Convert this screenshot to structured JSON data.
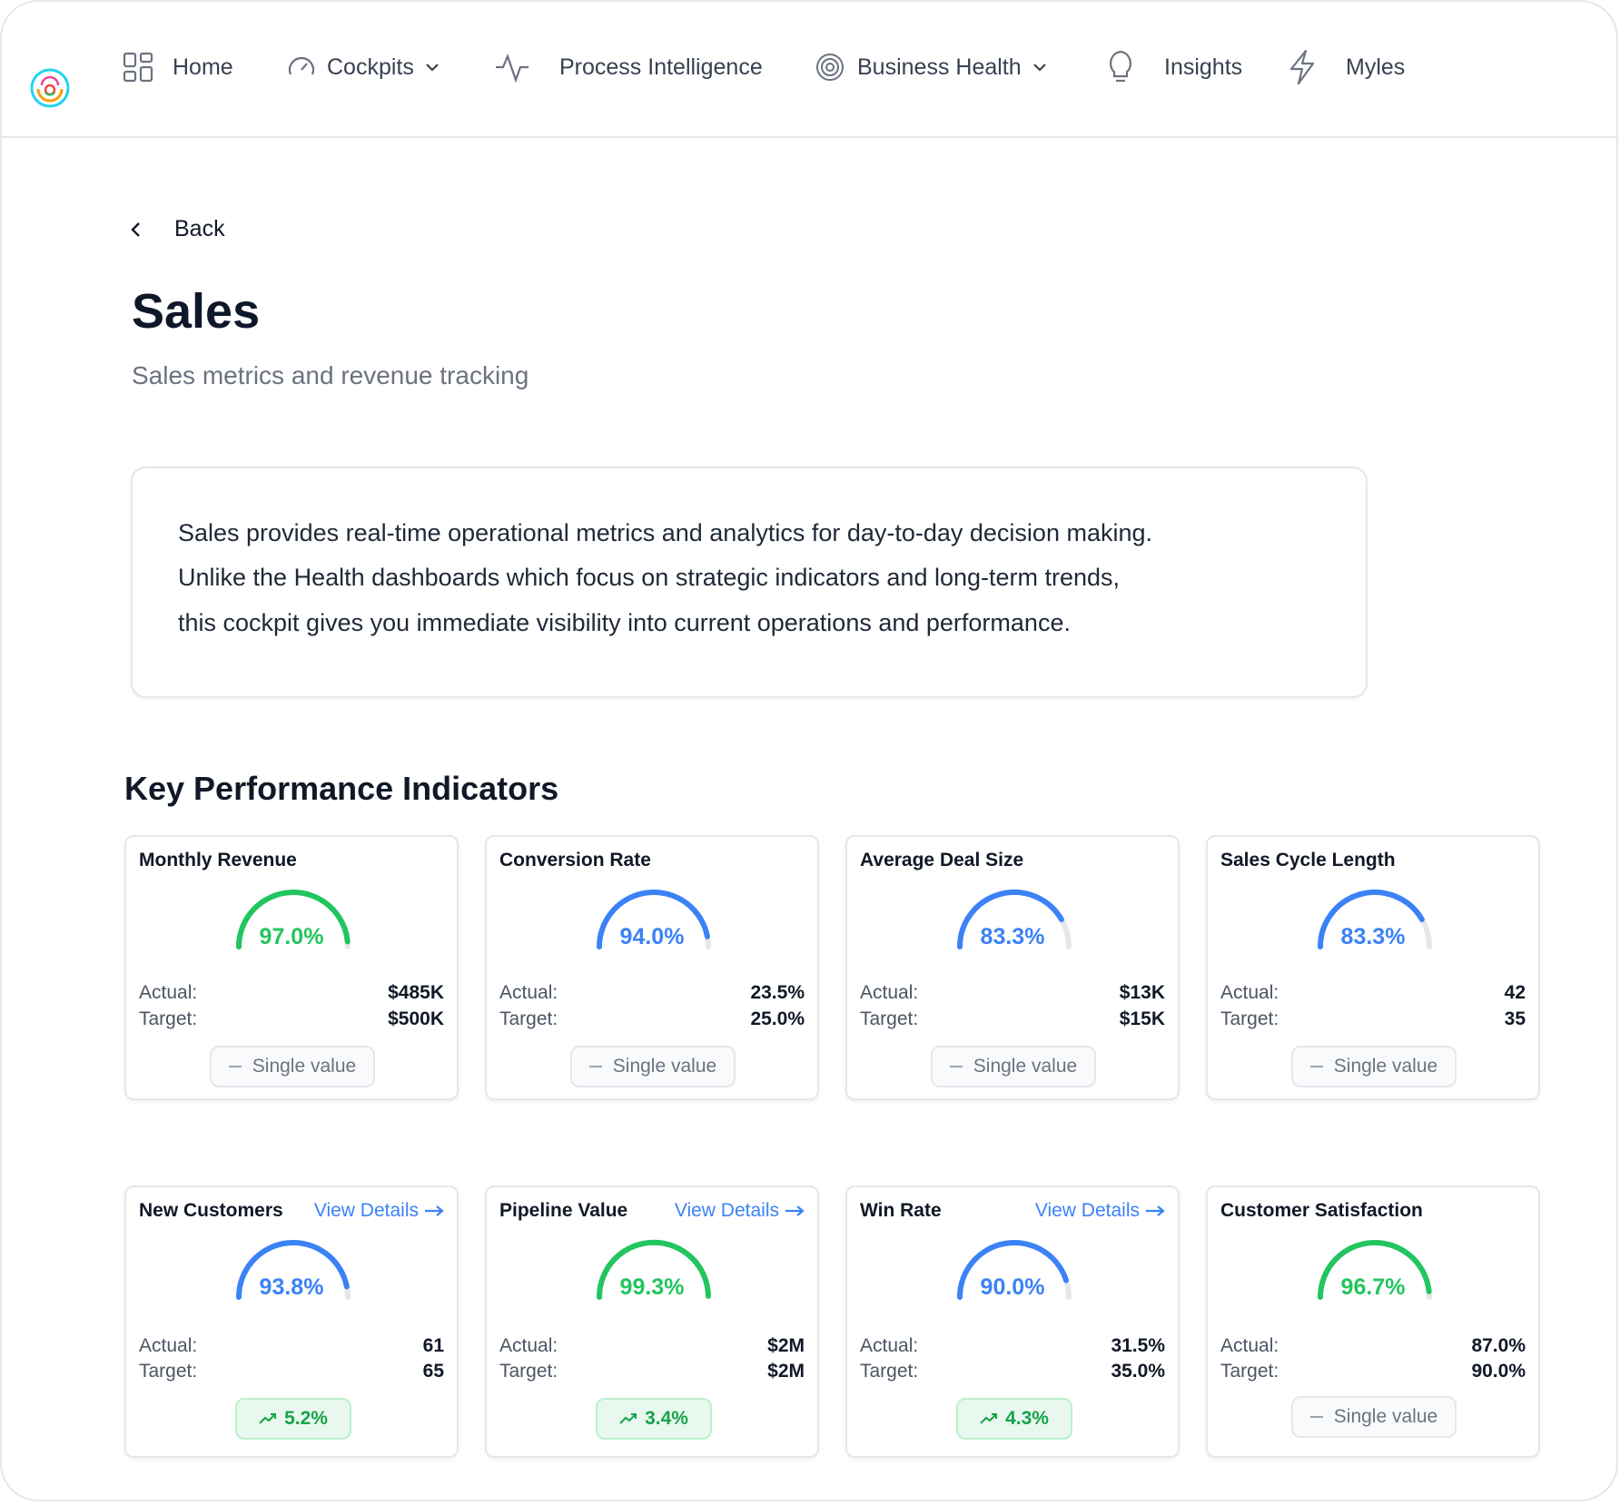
{
  "nav": {
    "items": [
      {
        "label": "Home",
        "icon": "grid-icon"
      },
      {
        "label": "Cockpits",
        "icon": "gauge-icon",
        "dropdown": true
      },
      {
        "label": "Process Intelligence",
        "icon": "activity-icon"
      },
      {
        "label": "Business Health",
        "icon": "target-icon",
        "dropdown": true
      },
      {
        "label": "Insights",
        "icon": "lightbulb-icon"
      },
      {
        "label": "Myles",
        "icon": "lightning-icon"
      }
    ]
  },
  "back_label": "Back",
  "page": {
    "title": "Sales",
    "subtitle": "Sales metrics and revenue tracking",
    "description": [
      "Sales provides real-time operational metrics and analytics for day-to-day decision making.",
      "Unlike the Health dashboards which focus on strategic indicators and long-term trends,",
      "this cockpit gives you immediate visibility into current operations and performance."
    ]
  },
  "kpi_heading": "Key Performance Indicators",
  "labels": {
    "actual": "Actual:",
    "target": "Target:",
    "single_value": "Single value",
    "view_details": "View Details"
  },
  "colors": {
    "green": "#22c55e",
    "blue": "#3b82f6",
    "track": "#e5e7eb",
    "trend_text": "#16a34a"
  },
  "kpis": [
    {
      "title": "Monthly Revenue",
      "percent": "97.0%",
      "progress": 0.97,
      "color": "green",
      "actual": "$485K",
      "target": "$500K",
      "badge": "single"
    },
    {
      "title": "Conversion Rate",
      "percent": "94.0%",
      "progress": 0.94,
      "color": "blue",
      "actual": "23.5%",
      "target": "25.0%",
      "badge": "single"
    },
    {
      "title": "Average Deal Size",
      "percent": "83.3%",
      "progress": 0.833,
      "color": "blue",
      "actual": "$13K",
      "target": "$15K",
      "badge": "single"
    },
    {
      "title": "Sales Cycle Length",
      "percent": "83.3%",
      "progress": 0.833,
      "color": "blue",
      "actual": "42",
      "target": "35",
      "badge": "single"
    },
    {
      "title": "New Customers",
      "percent": "93.8%",
      "progress": 0.938,
      "color": "blue",
      "actual": "61",
      "target": "65",
      "badge": "trend",
      "trend": "5.2%",
      "view_details": true
    },
    {
      "title": "Pipeline Value",
      "percent": "99.3%",
      "progress": 0.993,
      "color": "green",
      "actual": "$2M",
      "target": "$2M",
      "badge": "trend",
      "trend": "3.4%",
      "view_details": true
    },
    {
      "title": "Win Rate",
      "percent": "90.0%",
      "progress": 0.9,
      "color": "blue",
      "actual": "31.5%",
      "target": "35.0%",
      "badge": "trend",
      "trend": "4.3%",
      "view_details": true
    },
    {
      "title": "Customer Satisfaction",
      "percent": "96.7%",
      "progress": 0.967,
      "color": "green",
      "actual": "87.0%",
      "target": "90.0%",
      "badge": "single"
    }
  ]
}
